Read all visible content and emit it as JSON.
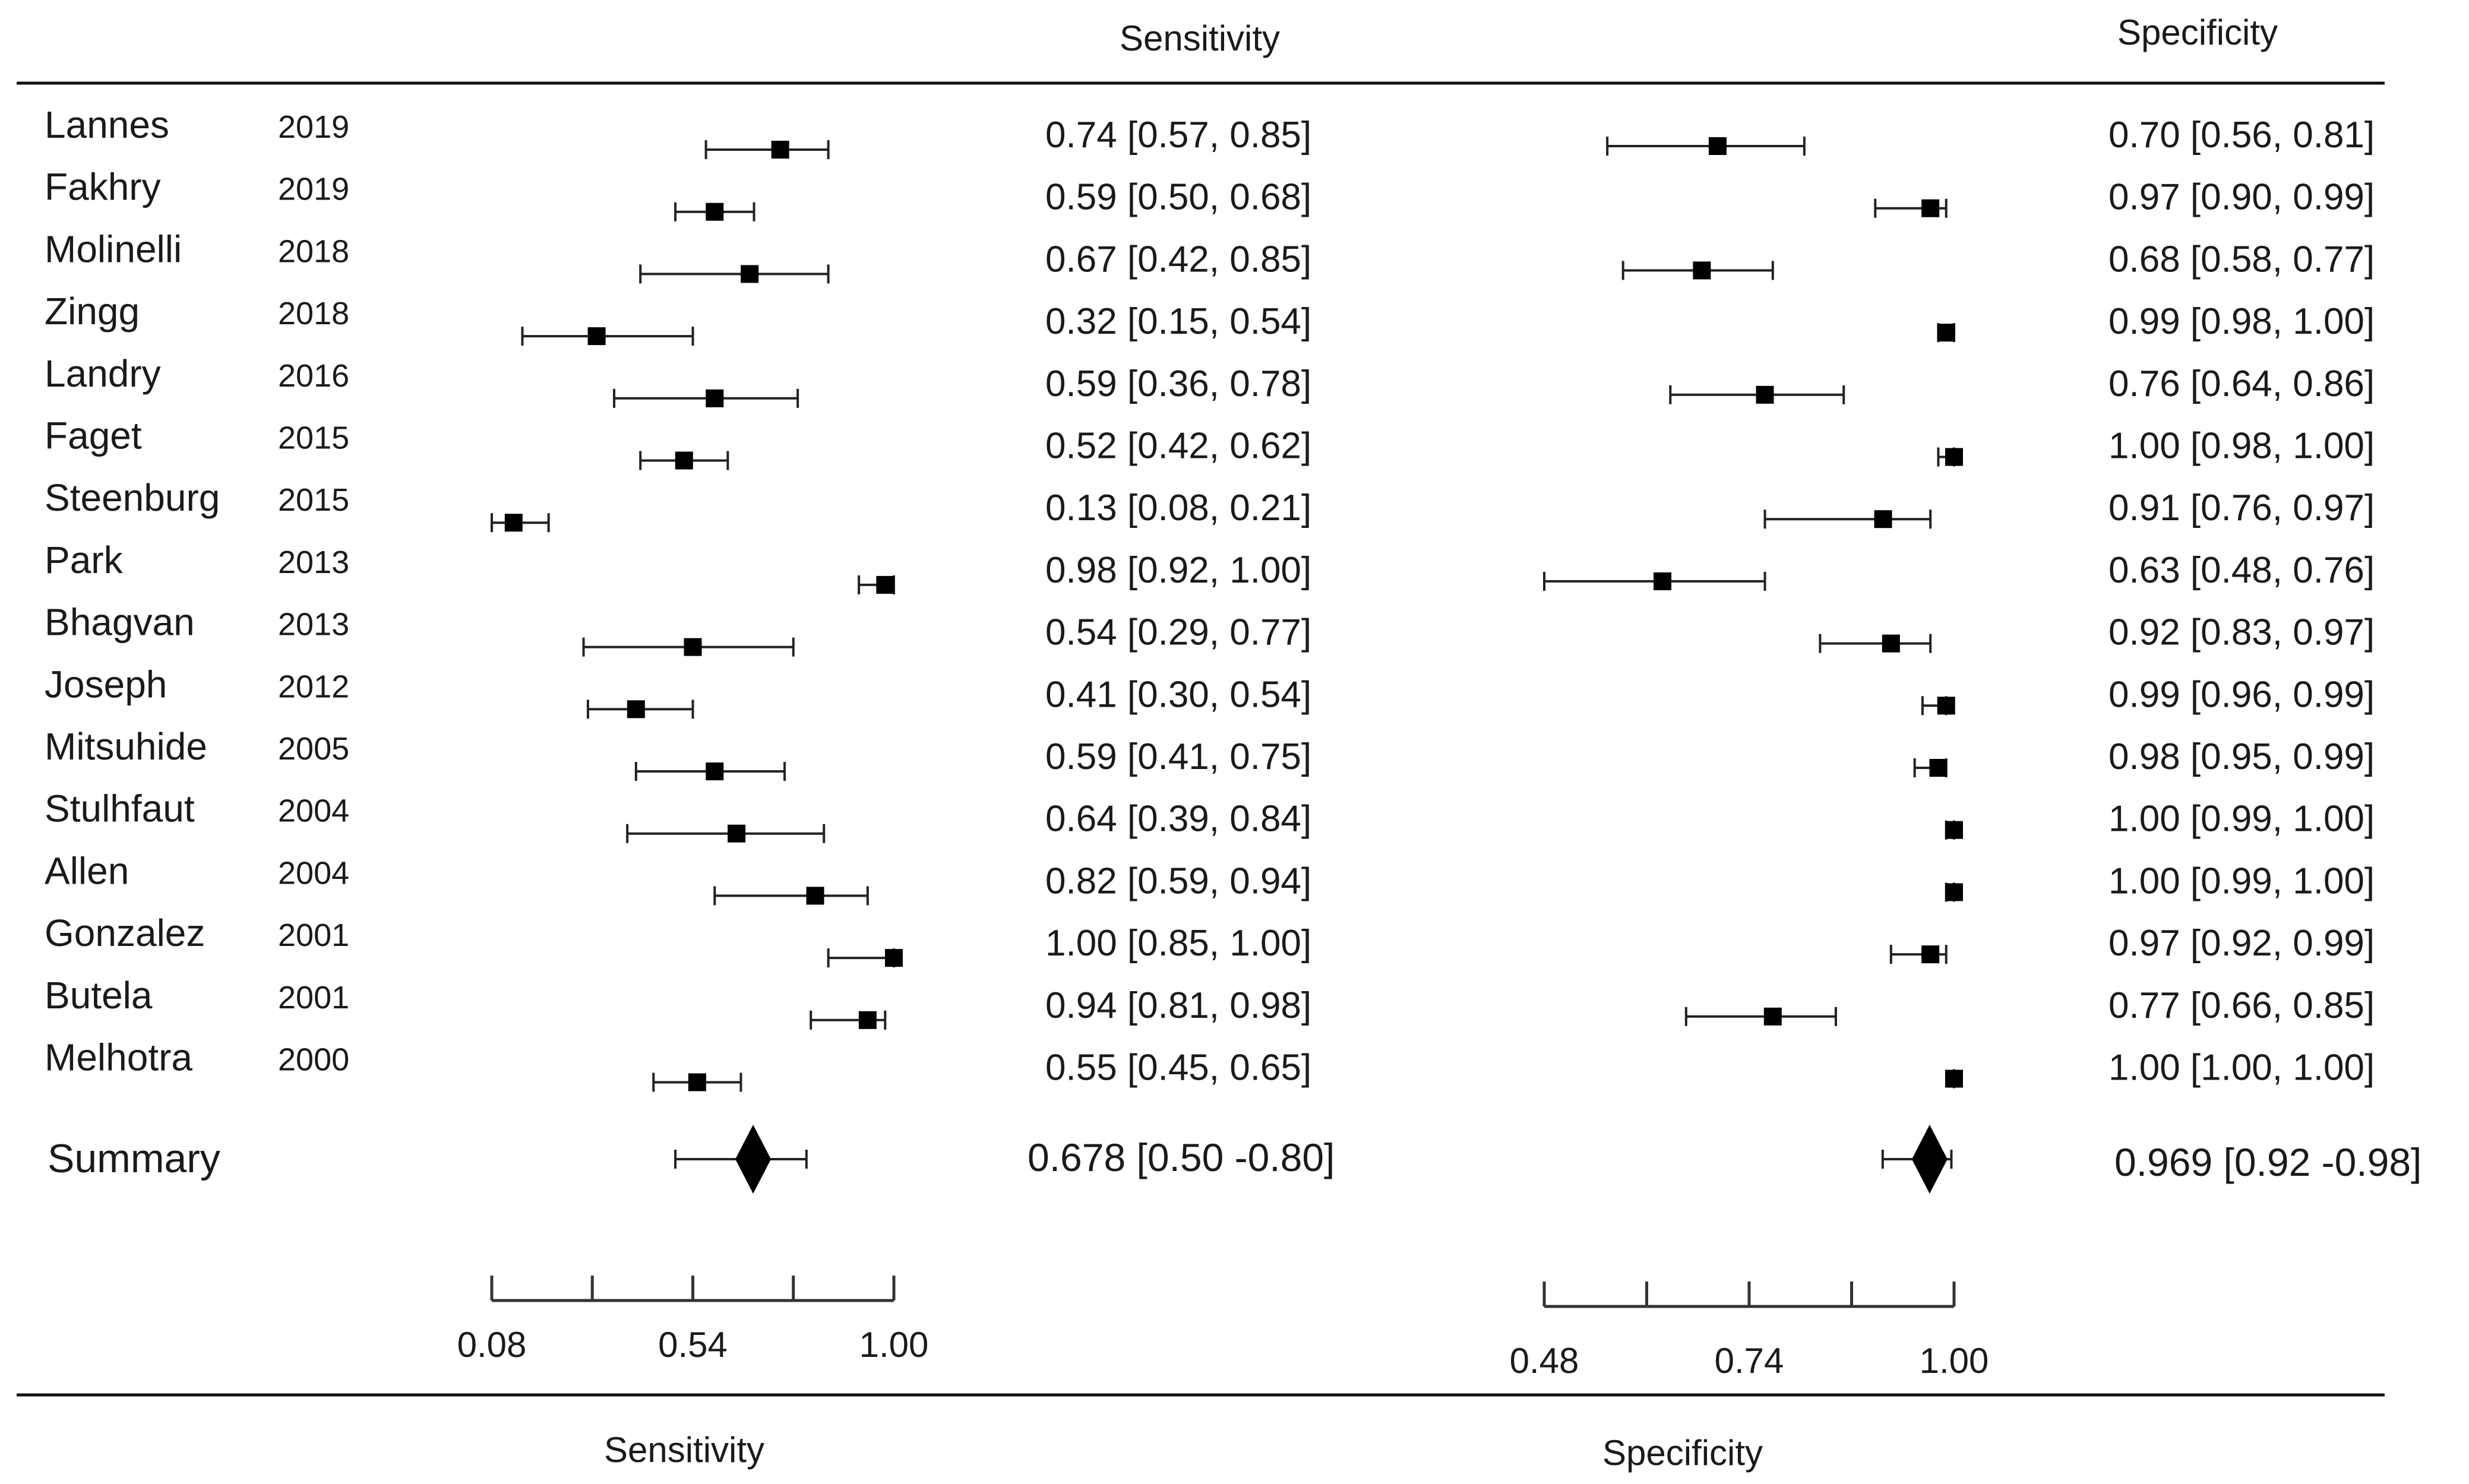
{
  "chart_data": {
    "type": "forest",
    "column_headers": {
      "sensitivity": "Sensitivity",
      "specificity": "Specificity"
    },
    "studies": [
      {
        "name": "Lannes",
        "year": "2019",
        "sens": 0.74,
        "sens_lo": 0.57,
        "sens_hi": 0.85,
        "sens_ci": "0.74 [0.57, 0.85]",
        "spec": 0.7,
        "spec_lo": 0.56,
        "spec_hi": 0.81,
        "spec_ci": "0.70 [0.56, 0.81]"
      },
      {
        "name": "Fakhry",
        "year": "2019",
        "sens": 0.59,
        "sens_lo": 0.5,
        "sens_hi": 0.68,
        "sens_ci": "0.59 [0.50, 0.68]",
        "spec": 0.97,
        "spec_lo": 0.9,
        "spec_hi": 0.99,
        "spec_ci": "0.97 [0.90, 0.99]"
      },
      {
        "name": "Molinelli",
        "year": "2018",
        "sens": 0.67,
        "sens_lo": 0.42,
        "sens_hi": 0.85,
        "sens_ci": "0.67 [0.42, 0.85]",
        "spec": 0.68,
        "spec_lo": 0.58,
        "spec_hi": 0.77,
        "spec_ci": "0.68 [0.58, 0.77]"
      },
      {
        "name": "Zingg",
        "year": "2018",
        "sens": 0.32,
        "sens_lo": 0.15,
        "sens_hi": 0.54,
        "sens_ci": "0.32 [0.15, 0.54]",
        "spec": 0.99,
        "spec_lo": 0.98,
        "spec_hi": 1.0,
        "spec_ci": "0.99 [0.98, 1.00]"
      },
      {
        "name": "Landry",
        "year": "2016",
        "sens": 0.59,
        "sens_lo": 0.36,
        "sens_hi": 0.78,
        "sens_ci": "0.59 [0.36, 0.78]",
        "spec": 0.76,
        "spec_lo": 0.64,
        "spec_hi": 0.86,
        "spec_ci": "0.76 [0.64, 0.86]"
      },
      {
        "name": "Faget",
        "year": "2015",
        "sens": 0.52,
        "sens_lo": 0.42,
        "sens_hi": 0.62,
        "sens_ci": "0.52 [0.42, 0.62]",
        "spec": 1.0,
        "spec_lo": 0.98,
        "spec_hi": 1.0,
        "spec_ci": "1.00 [0.98, 1.00]"
      },
      {
        "name": "Steenburg",
        "year": "2015",
        "sens": 0.13,
        "sens_lo": 0.08,
        "sens_hi": 0.21,
        "sens_ci": "0.13 [0.08, 0.21]",
        "spec": 0.91,
        "spec_lo": 0.76,
        "spec_hi": 0.97,
        "spec_ci": "0.91 [0.76, 0.97]"
      },
      {
        "name": "Park",
        "year": "2013",
        "sens": 0.98,
        "sens_lo": 0.92,
        "sens_hi": 1.0,
        "sens_ci": "0.98 [0.92, 1.00]",
        "spec": 0.63,
        "spec_lo": 0.48,
        "spec_hi": 0.76,
        "spec_ci": "0.63 [0.48, 0.76]"
      },
      {
        "name": "Bhagvan",
        "year": "2013",
        "sens": 0.54,
        "sens_lo": 0.29,
        "sens_hi": 0.77,
        "sens_ci": "0.54 [0.29, 0.77]",
        "spec": 0.92,
        "spec_lo": 0.83,
        "spec_hi": 0.97,
        "spec_ci": "0.92 [0.83, 0.97]"
      },
      {
        "name": "Joseph",
        "year": "2012",
        "sens": 0.41,
        "sens_lo": 0.3,
        "sens_hi": 0.54,
        "sens_ci": "0.41 [0.30, 0.54]",
        "spec": 0.99,
        "spec_lo": 0.96,
        "spec_hi": 0.99,
        "spec_ci": "0.99 [0.96, 0.99]"
      },
      {
        "name": "Mitsuhide",
        "year": "2005",
        "sens": 0.59,
        "sens_lo": 0.41,
        "sens_hi": 0.75,
        "sens_ci": "0.59 [0.41, 0.75]",
        "spec": 0.98,
        "spec_lo": 0.95,
        "spec_hi": 0.99,
        "spec_ci": "0.98 [0.95, 0.99]"
      },
      {
        "name": "Stulhfaut",
        "year": "2004",
        "sens": 0.64,
        "sens_lo": 0.39,
        "sens_hi": 0.84,
        "sens_ci": "0.64 [0.39, 0.84]",
        "spec": 1.0,
        "spec_lo": 0.99,
        "spec_hi": 1.0,
        "spec_ci": "1.00 [0.99, 1.00]"
      },
      {
        "name": "Allen",
        "year": "2004",
        "sens": 0.82,
        "sens_lo": 0.59,
        "sens_hi": 0.94,
        "sens_ci": "0.82 [0.59, 0.94]",
        "spec": 1.0,
        "spec_lo": 0.99,
        "spec_hi": 1.0,
        "spec_ci": "1.00 [0.99, 1.00]"
      },
      {
        "name": "Gonzalez",
        "year": "2001",
        "sens": 1.0,
        "sens_lo": 0.85,
        "sens_hi": 1.0,
        "sens_ci": "1.00 [0.85, 1.00]",
        "spec": 0.97,
        "spec_lo": 0.92,
        "spec_hi": 0.99,
        "spec_ci": "0.97 [0.92, 0.99]"
      },
      {
        "name": "Butela",
        "year": "2001",
        "sens": 0.94,
        "sens_lo": 0.81,
        "sens_hi": 0.98,
        "sens_ci": "0.94 [0.81, 0.98]",
        "spec": 0.77,
        "spec_lo": 0.66,
        "spec_hi": 0.85,
        "spec_ci": "0.77 [0.66, 0.85]"
      },
      {
        "name": "Melhotra",
        "year": "2000",
        "sens": 0.55,
        "sens_lo": 0.45,
        "sens_hi": 0.65,
        "sens_ci": "0.55 [0.45, 0.65]",
        "spec": 1.0,
        "spec_lo": 1.0,
        "spec_hi": 1.0,
        "spec_ci": "1.00 [1.00, 1.00]"
      }
    ],
    "summary": {
      "label": "Summary",
      "sens": 0.678,
      "sens_lo": 0.5,
      "sens_hi": 0.8,
      "sens_ci": "0.678 [0.50 -0.80]",
      "spec": 0.969,
      "spec_lo": 0.92,
      "spec_hi": 0.98,
      "spec_ci": "0.969 [0.92 -0.98]"
    },
    "sens_axis": {
      "min": 0.08,
      "max": 1.0,
      "ticks": [
        0.08,
        0.31,
        0.54,
        0.77,
        1.0
      ],
      "tick_labels": [
        "0.08",
        "0.54",
        "1.00"
      ],
      "title": "Sensitivity"
    },
    "spec_axis": {
      "min": 0.48,
      "max": 1.0,
      "ticks": [
        0.48,
        0.61,
        0.74,
        0.87,
        1.0
      ],
      "tick_labels": [
        "0.48",
        "0.74",
        "1.00"
      ],
      "title": "Specificity"
    }
  }
}
